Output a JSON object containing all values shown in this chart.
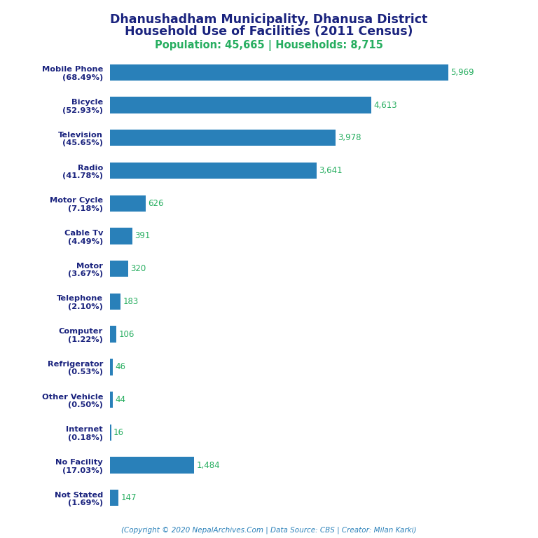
{
  "title_line1": "Dhanushadham Municipality, Dhanusa District",
  "title_line2": "Household Use of Facilities (2011 Census)",
  "subtitle": "Population: 45,665 | Households: 8,715",
  "copyright": "(Copyright © 2020 NepalArchives.Com | Data Source: CBS | Creator: Milan Karki)",
  "categories": [
    "Not Stated\n(1.69%)",
    "No Facility\n(17.03%)",
    "Internet\n(0.18%)",
    "Other Vehicle\n(0.50%)",
    "Refrigerator\n(0.53%)",
    "Computer\n(1.22%)",
    "Telephone\n(2.10%)",
    "Motor\n(3.67%)",
    "Cable Tv\n(4.49%)",
    "Motor Cycle\n(7.18%)",
    "Radio\n(41.78%)",
    "Television\n(45.65%)",
    "Bicycle\n(52.93%)",
    "Mobile Phone\n(68.49%)"
  ],
  "values": [
    147,
    1484,
    16,
    44,
    46,
    106,
    183,
    320,
    391,
    626,
    3641,
    3978,
    4613,
    5969
  ],
  "bar_color": "#2980b9",
  "value_color": "#27ae60",
  "title_color": "#1a237e",
  "subtitle_color": "#27ae60",
  "copyright_color": "#2980b9",
  "background_color": "#ffffff",
  "xlim": [
    0,
    6700
  ]
}
